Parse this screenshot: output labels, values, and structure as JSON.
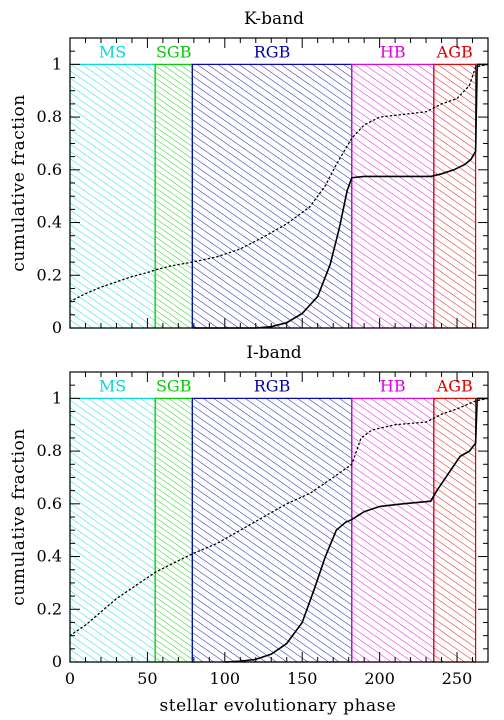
{
  "chart_data": [
    {
      "type": "line",
      "title": "K-band",
      "xlabel": "",
      "ylabel": "cumulative fraction",
      "xlim": [
        0,
        270
      ],
      "ylim": [
        0,
        1.1
      ],
      "xticks": [
        "0",
        "50",
        "100",
        "150",
        "200",
        "250"
      ],
      "yticks": [
        "0",
        "0.2",
        "0.4",
        "0.6",
        "0.8",
        "1"
      ],
      "regions": [
        {
          "label": "MS",
          "x": [
            0,
            55
          ],
          "color": "#00d8d8"
        },
        {
          "label": "SGB",
          "x": [
            55,
            79
          ],
          "color": "#00cc00"
        },
        {
          "label": "RGB",
          "x": [
            79,
            182
          ],
          "color": "#0000aa"
        },
        {
          "label": "HB",
          "x": [
            182,
            235
          ],
          "color": "#dd00dd"
        },
        {
          "label": "AGB",
          "x": [
            235,
            262
          ],
          "color": "#dd0000"
        }
      ],
      "series": [
        {
          "style": "dotted",
          "points": [
            [
              0,
              0.1
            ],
            [
              10,
              0.13
            ],
            [
              20,
              0.155
            ],
            [
              30,
              0.175
            ],
            [
              40,
              0.195
            ],
            [
              50,
              0.21
            ],
            [
              55,
              0.22
            ],
            [
              65,
              0.235
            ],
            [
              79,
              0.25
            ],
            [
              95,
              0.27
            ],
            [
              110,
              0.3
            ],
            [
              125,
              0.345
            ],
            [
              140,
              0.395
            ],
            [
              155,
              0.46
            ],
            [
              165,
              0.54
            ],
            [
              172,
              0.62
            ],
            [
              182,
              0.72
            ],
            [
              190,
              0.77
            ],
            [
              200,
              0.8
            ],
            [
              215,
              0.81
            ],
            [
              230,
              0.82
            ],
            [
              240,
              0.85
            ],
            [
              250,
              0.87
            ],
            [
              258,
              0.92
            ],
            [
              262,
              0.99
            ],
            [
              270,
              1.0
            ]
          ]
        },
        {
          "style": "solid",
          "points": [
            [
              80,
              0.0
            ],
            [
              120,
              0.0
            ],
            [
              130,
              0.005
            ],
            [
              140,
              0.02
            ],
            [
              150,
              0.055
            ],
            [
              160,
              0.12
            ],
            [
              168,
              0.24
            ],
            [
              174,
              0.38
            ],
            [
              179,
              0.52
            ],
            [
              182,
              0.57
            ],
            [
              190,
              0.575
            ],
            [
              233,
              0.575
            ],
            [
              240,
              0.585
            ],
            [
              248,
              0.6
            ],
            [
              255,
              0.62
            ],
            [
              259,
              0.64
            ],
            [
              262,
              0.67
            ],
            [
              263,
              1.0
            ],
            [
              270,
              1.0
            ]
          ]
        }
      ]
    },
    {
      "type": "line",
      "title": "I-band",
      "xlabel": "stellar evolutionary phase",
      "ylabel": "cumulative fraction",
      "xlim": [
        0,
        270
      ],
      "ylim": [
        0,
        1.1
      ],
      "xticks": [
        "0",
        "50",
        "100",
        "150",
        "200",
        "250"
      ],
      "yticks": [
        "0",
        "0.2",
        "0.4",
        "0.6",
        "0.8",
        "1"
      ],
      "regions": [
        {
          "label": "MS",
          "x": [
            0,
            55
          ],
          "color": "#00d8d8"
        },
        {
          "label": "SGB",
          "x": [
            55,
            79
          ],
          "color": "#00cc00"
        },
        {
          "label": "RGB",
          "x": [
            79,
            182
          ],
          "color": "#0000aa"
        },
        {
          "label": "HB",
          "x": [
            182,
            235
          ],
          "color": "#dd00dd"
        },
        {
          "label": "AGB",
          "x": [
            235,
            262
          ],
          "color": "#dd0000"
        }
      ],
      "series": [
        {
          "style": "dotted",
          "points": [
            [
              0,
              0.1
            ],
            [
              10,
              0.14
            ],
            [
              20,
              0.19
            ],
            [
              30,
              0.24
            ],
            [
              40,
              0.28
            ],
            [
              50,
              0.32
            ],
            [
              55,
              0.34
            ],
            [
              65,
              0.37
            ],
            [
              79,
              0.41
            ],
            [
              95,
              0.45
            ],
            [
              110,
              0.5
            ],
            [
              125,
              0.55
            ],
            [
              140,
              0.6
            ],
            [
              155,
              0.64
            ],
            [
              170,
              0.7
            ],
            [
              182,
              0.75
            ],
            [
              188,
              0.85
            ],
            [
              195,
              0.88
            ],
            [
              210,
              0.9
            ],
            [
              230,
              0.91
            ],
            [
              240,
              0.94
            ],
            [
              250,
              0.96
            ],
            [
              258,
              0.98
            ],
            [
              262,
              0.99
            ],
            [
              270,
              1.0
            ]
          ]
        },
        {
          "style": "solid",
          "points": [
            [
              100,
              0.0
            ],
            [
              110,
              0.003
            ],
            [
              120,
              0.01
            ],
            [
              130,
              0.03
            ],
            [
              140,
              0.07
            ],
            [
              150,
              0.15
            ],
            [
              158,
              0.28
            ],
            [
              165,
              0.4
            ],
            [
              172,
              0.5
            ],
            [
              178,
              0.53
            ],
            [
              182,
              0.54
            ],
            [
              190,
              0.57
            ],
            [
              200,
              0.59
            ],
            [
              215,
              0.6
            ],
            [
              233,
              0.61
            ],
            [
              237,
              0.65
            ],
            [
              245,
              0.72
            ],
            [
              252,
              0.78
            ],
            [
              258,
              0.8
            ],
            [
              262,
              0.83
            ],
            [
              263,
              1.0
            ],
            [
              270,
              1.0
            ]
          ]
        }
      ]
    }
  ]
}
